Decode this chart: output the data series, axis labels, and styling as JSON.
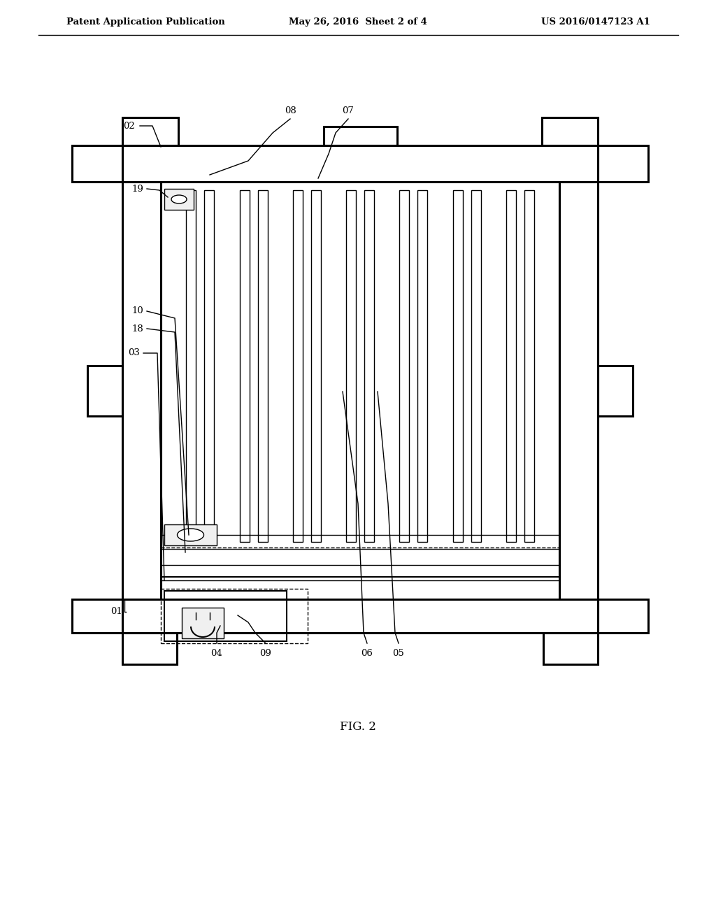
{
  "bg_color": "#ffffff",
  "line_color": "#000000",
  "header_left": "Patent Application Publication",
  "header_center": "May 26, 2016  Sheet 2 of 4",
  "header_right": "US 2016/0147123 A1",
  "fig_label": "FIG. 2",
  "header_fontsize": 9.5,
  "label_fontsize": 9.5,
  "fig_label_fontsize": 12
}
